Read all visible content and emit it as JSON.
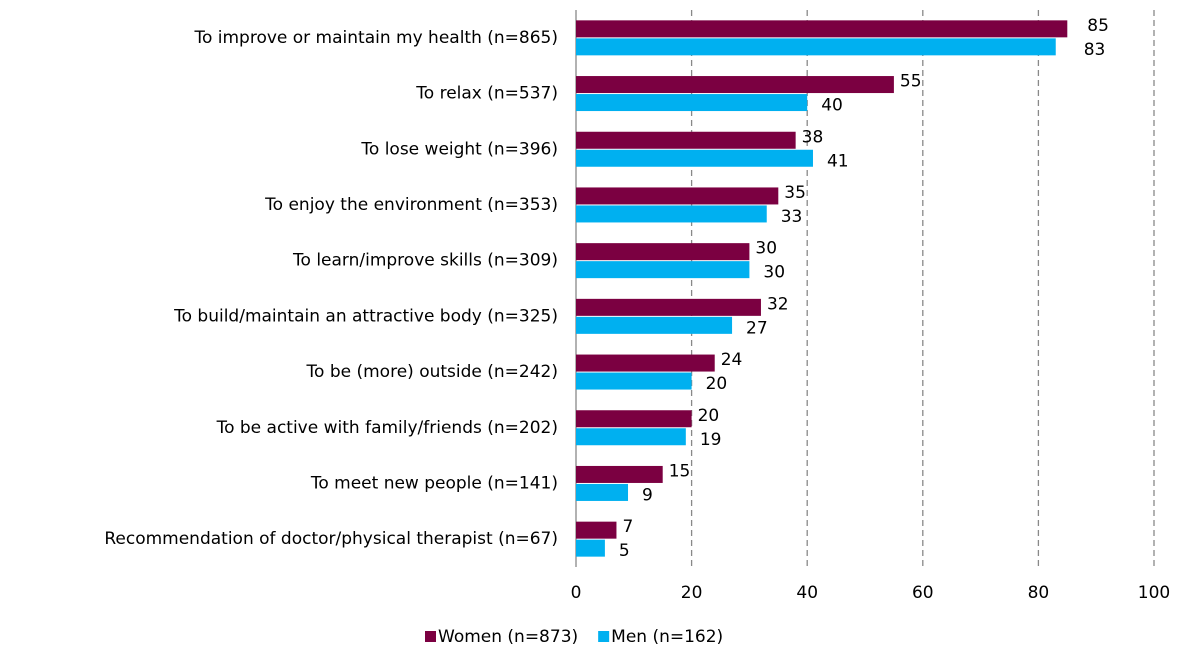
{
  "chart_data": {
    "type": "bar",
    "orientation": "horizontal",
    "categories": [
      "To improve or maintain my health (n=865)",
      "To relax (n=537)",
      "To lose weight (n=396)",
      "To enjoy the environment (n=353)",
      "To learn/improve skills (n=309)",
      "To build/maintain an attractive body (n=325)",
      "To be (more) outside (n=242)",
      "To be active with family/friends (n=202)",
      "To meet new people (n=141)",
      "Recommendation of doctor/physical therapist (n=67)"
    ],
    "series": [
      {
        "name": "Women (n=873)",
        "color": "#7b0041",
        "values": [
          85,
          55,
          38,
          35,
          30,
          32,
          24,
          20,
          15,
          7
        ]
      },
      {
        "name": "Men (n=162)",
        "color": "#00b0f0",
        "values": [
          83,
          40,
          41,
          33,
          30,
          27,
          20,
          19,
          9,
          5
        ]
      }
    ],
    "xlim": [
      0,
      100
    ],
    "xticks": [
      0,
      20,
      40,
      60,
      80,
      100
    ],
    "grid": true,
    "legend": "bottom"
  }
}
